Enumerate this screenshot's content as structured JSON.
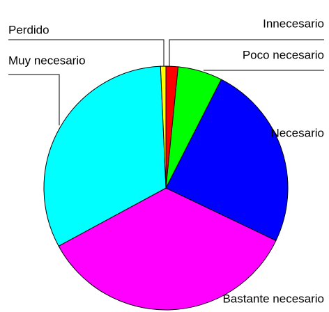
{
  "chart_data": {
    "type": "pie",
    "categories": [
      "Innecesario",
      "Poco necesario",
      "Necesario",
      "Bastante necesario",
      "Muy necesario",
      "Perdido"
    ],
    "values": [
      1.6,
      5.9,
      24.6,
      35.0,
      32.2,
      0.7
    ],
    "colors": [
      "#ff0000",
      "#00ff00",
      "#0000ff",
      "#ff00ff",
      "#00ffff",
      "#ffff00"
    ]
  }
}
